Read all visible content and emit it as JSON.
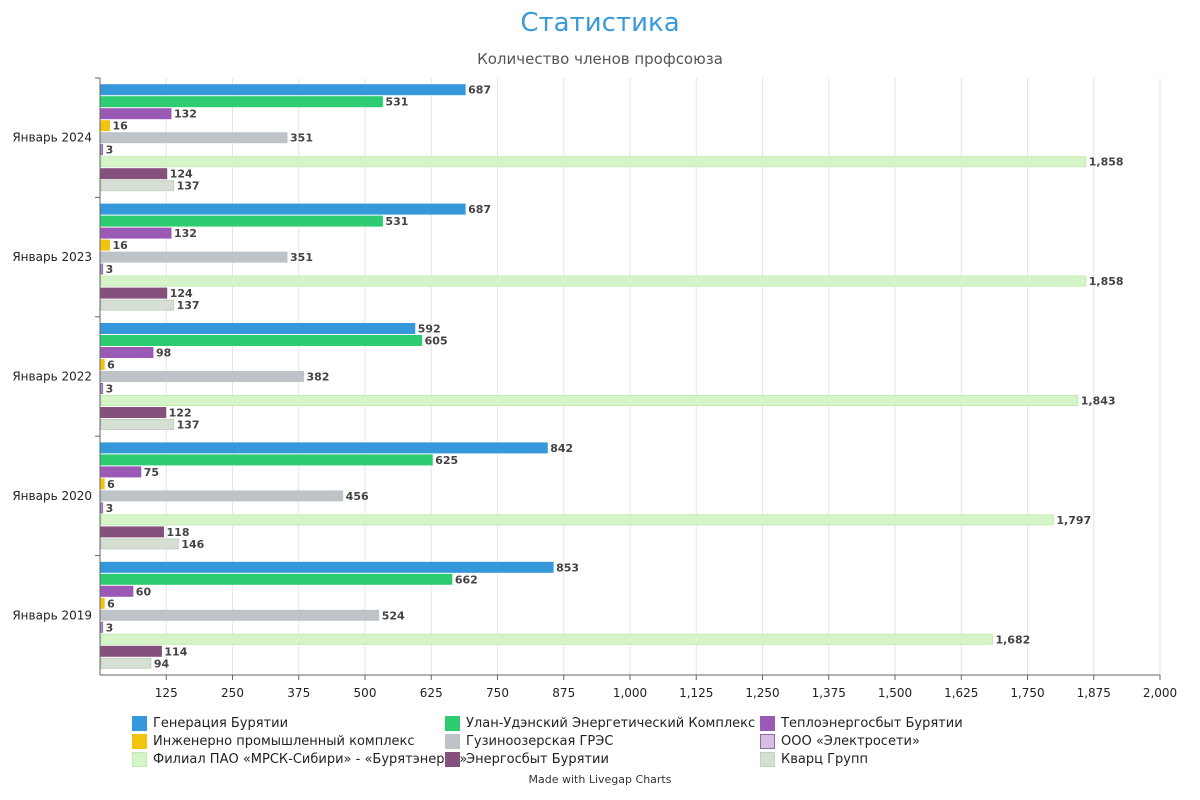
{
  "chart_data": {
    "type": "bar",
    "orientation": "horizontal",
    "title": "Статистика",
    "subtitle": "Количество членов профсоюза",
    "categories": [
      "Январь 2024",
      "Январь 2023",
      "Январь 2022",
      "Январь 2020",
      "Январь 2019"
    ],
    "xlim": [
      0,
      2000
    ],
    "ticks": [
      125,
      250,
      375,
      500,
      625,
      750,
      875,
      1000,
      1125,
      1250,
      1375,
      1500,
      1625,
      1750,
      1875,
      2000
    ],
    "tick_labels": [
      "125",
      "250",
      "375",
      "500",
      "625",
      "750",
      "875",
      "1,000",
      "1,125",
      "1,250",
      "1,375",
      "1,500",
      "1,625",
      "1,750",
      "1,875",
      "2,000"
    ],
    "grid": true,
    "legend_position": "bottom",
    "series": [
      {
        "name": "Генерация Бурятии",
        "color": "#3498db",
        "border": "#3498db",
        "values": [
          687,
          687,
          592,
          842,
          853
        ]
      },
      {
        "name": "Улан-Удэнский Энергетический Комплекс",
        "color": "#2ecc71",
        "border": "#2ecc71",
        "values": [
          531,
          531,
          605,
          625,
          662
        ]
      },
      {
        "name": "Теплоэнергосбыт Бурятии",
        "color": "#9b59b6",
        "border": "#9b59b6",
        "values": [
          132,
          132,
          98,
          75,
          60
        ]
      },
      {
        "name": "Инженерно промышленный комплекс",
        "color": "#f1c40f",
        "border": "#f1c40f",
        "values": [
          16,
          16,
          6,
          6,
          6
        ]
      },
      {
        "name": "Гузиноозерская ГРЭС",
        "color": "#bdc3c7",
        "border": "#bdc3c7",
        "values": [
          351,
          351,
          382,
          456,
          524
        ]
      },
      {
        "name": "ООО «Электросети»",
        "color": "#d7bde2",
        "border": "#8e6b9e",
        "values": [
          3,
          3,
          3,
          3,
          3
        ]
      },
      {
        "name": "Филиал ПАО «МРСК-Сибири» - «Бурятэнерго»",
        "color": "#d5f5c8",
        "border": "#c3ecb2",
        "values": [
          1858,
          1858,
          1843,
          1797,
          1682
        ]
      },
      {
        "name": "Энергосбыт Бурятии",
        "color": "#85507b",
        "border": "#85507b",
        "values": [
          124,
          124,
          122,
          118,
          114
        ]
      },
      {
        "name": "Кварц Групп",
        "color": "#d5dfd3",
        "border": "#c5d1c2",
        "values": [
          137,
          137,
          137,
          146,
          94
        ]
      }
    ]
  },
  "credit": "Made with Livegap Charts"
}
